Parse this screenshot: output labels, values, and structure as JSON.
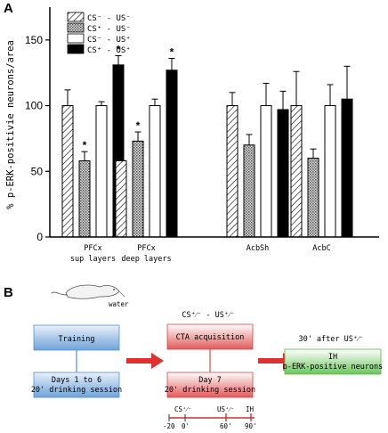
{
  "panel_a_label": "A",
  "panel_b_label": "B",
  "chart_data": {
    "type": "bar",
    "ylabel": "% p-ERK-positivie neurons/area",
    "ylim": [
      0,
      175
    ],
    "yticks": [
      "0",
      "50",
      "100",
      "150"
    ],
    "ytick_values": [
      0,
      50,
      100,
      150
    ],
    "categories": [
      {
        "line1": "PFCx",
        "line2": "sup layers"
      },
      {
        "line1": "PFCx",
        "line2": "deep layers"
      },
      {
        "line1": "AcbSh",
        "line2": ""
      },
      {
        "line1": "AcbC",
        "line2": ""
      }
    ],
    "series": [
      {
        "legend": "CS⁻ - US⁻",
        "fill": "hatch",
        "values": [
          100,
          58,
          100,
          100
        ],
        "errors": [
          12,
          7,
          10,
          26
        ]
      },
      {
        "legend": "CS⁺ - US⁻",
        "fill": "dotted",
        "values": [
          58,
          73,
          70,
          60
        ],
        "errors": [
          7,
          7,
          8,
          7
        ]
      },
      {
        "legend": "CS⁻ - US⁺",
        "fill": "white",
        "values": [
          100,
          100,
          100,
          100
        ],
        "errors": [
          3,
          5,
          17,
          16
        ]
      },
      {
        "legend": "CS⁺ - US⁺",
        "fill": "black",
        "values": [
          131,
          127,
          97,
          105
        ],
        "errors": [
          7,
          9,
          14,
          25
        ]
      }
    ],
    "significance_marker": "*",
    "significant": [
      [
        false,
        true,
        false,
        true
      ],
      [
        false,
        true,
        false,
        true
      ],
      [
        false,
        false,
        false,
        false
      ],
      [
        false,
        false,
        false,
        false
      ]
    ]
  },
  "diagram": {
    "water_label": "water",
    "training": "Training",
    "days": {
      "line1": "Days 1 to 6",
      "line2": "20' drinking session"
    },
    "cs_us_header": "CS⁺⁄⁻ - US⁺⁄⁻",
    "cta": "CTA acquisition",
    "day7": {
      "line1": "Day 7",
      "line2": "20' drinking session"
    },
    "after_us": "30' after US⁺⁄⁻",
    "result": {
      "line1": "IH",
      "line2": "p-ERK-positive neurons"
    },
    "timeline": {
      "cs_label": "CS⁺⁄⁻",
      "us_label": "US⁺⁄⁻",
      "ih_label": "IH",
      "ticks": [
        "-20",
        "0'",
        "60'",
        "90'"
      ]
    },
    "colors": {
      "blue": "#6fa2d8",
      "red": "#e03a3a",
      "green": "#57b64a",
      "arrow": "#e0302f"
    }
  }
}
